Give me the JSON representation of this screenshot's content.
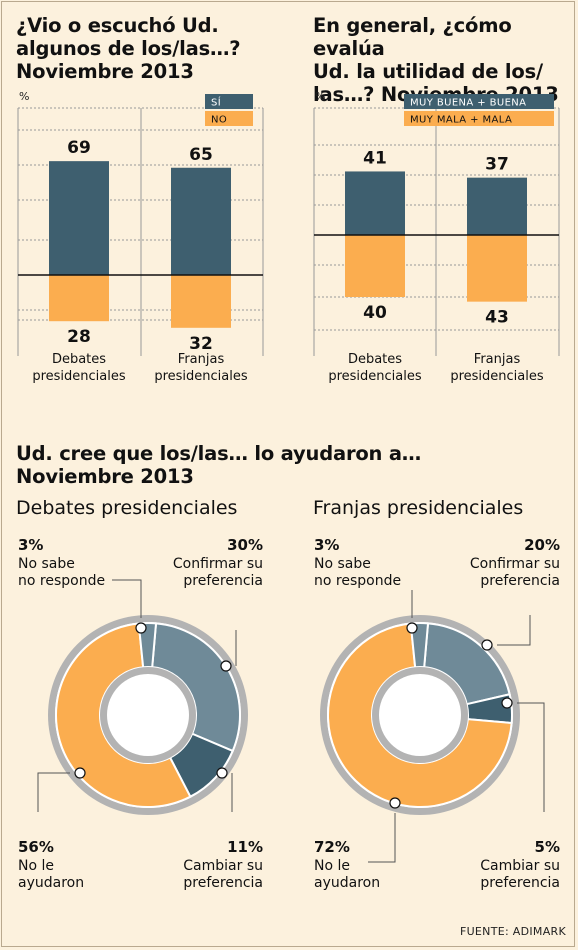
{
  "colors": {
    "dark": "#3e5f6f",
    "mid": "#6f8a98",
    "orange": "#fbad4f",
    "ring": "#b3b3b3",
    "axis": "#111111",
    "grid": "#999999"
  },
  "source": "FUENTE: ADIMARK",
  "chart_data": [
    {
      "type": "bar",
      "title_lines": [
        "¿Vio o escuchó Ud.",
        "algunos de los/las…?",
        "Noviembre 2013"
      ],
      "unit": "%",
      "categories": [
        [
          "Debates",
          "presidenciales"
        ],
        [
          "Franjas",
          "presidenciales"
        ]
      ],
      "series": [
        {
          "name": "SÍ",
          "values": [
            69,
            65
          ],
          "color": "#3e5f6f"
        },
        {
          "name": "NO",
          "values": [
            -28,
            -32
          ],
          "color": "#fbad4f"
        }
      ],
      "labels": [
        [
          "69",
          "65"
        ],
        [
          "28",
          "32"
        ]
      ],
      "legend": "top-right"
    },
    {
      "type": "bar",
      "title_lines": [
        "En general, ¿cómo evalúa",
        "Ud. la utilidad de los/",
        "las…? Noviembre 2013"
      ],
      "unit": "%",
      "categories": [
        [
          "Debates",
          "presidenciales"
        ],
        [
          "Franjas",
          "presidenciales"
        ]
      ],
      "series": [
        {
          "name": "MUY BUENA + BUENA",
          "values": [
            41,
            37
          ],
          "color": "#3e5f6f"
        },
        {
          "name": "MUY MALA + MALA",
          "values": [
            -40,
            -43
          ],
          "color": "#fbad4f"
        }
      ],
      "labels": [
        [
          "41",
          "37"
        ],
        [
          "40",
          "43"
        ]
      ],
      "legend": "top-right"
    },
    {
      "type": "pie",
      "title_lines": [
        "Ud. cree que los/las… lo ayudaron a…",
        "Noviembre 2013"
      ],
      "subtitle": "Debates presidenciales",
      "slices": [
        {
          "label_lines": [
            "Confirmar su",
            "preferencia"
          ],
          "value": 30,
          "pct": "30%",
          "color": "#6f8a98"
        },
        {
          "label_lines": [
            "Cambiar su",
            "preferencia"
          ],
          "value": 11,
          "pct": "11%",
          "color": "#3e5f6f"
        },
        {
          "label_lines": [
            "No le",
            "ayudaron"
          ],
          "value": 56,
          "pct": "56%",
          "color": "#fbad4f"
        },
        {
          "label_lines": [
            "No sabe",
            "no responde"
          ],
          "value": 3,
          "pct": "3%",
          "color": "#6f8a98"
        }
      ]
    },
    {
      "type": "pie",
      "subtitle": "Franjas presidenciales",
      "slices": [
        {
          "label_lines": [
            "Confirmar su",
            "preferencia"
          ],
          "value": 20,
          "pct": "20%",
          "color": "#6f8a98"
        },
        {
          "label_lines": [
            "Cambiar su",
            "preferencia"
          ],
          "value": 5,
          "pct": "5%",
          "color": "#3e5f6f"
        },
        {
          "label_lines": [
            "No le",
            "ayudaron"
          ],
          "value": 72,
          "pct": "72%",
          "color": "#fbad4f"
        },
        {
          "label_lines": [
            "No sabe",
            "no responde"
          ],
          "value": 3,
          "pct": "3%",
          "color": "#6f8a98"
        }
      ]
    }
  ]
}
